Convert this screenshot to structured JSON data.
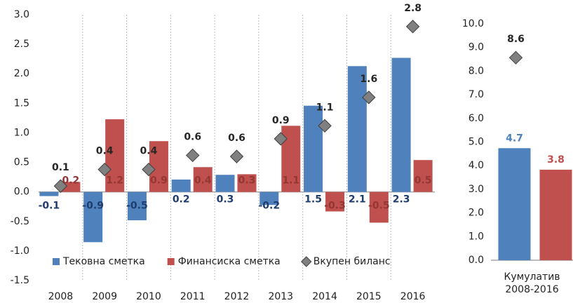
{
  "chart_data": [
    {
      "type": "bar",
      "categories": [
        "2008",
        "2009",
        "2010",
        "2011",
        "2012",
        "2013",
        "2014",
        "2015",
        "2016"
      ],
      "series": [
        {
          "name": "Тековна сметка",
          "type": "bar",
          "color": "#4f81bd",
          "label_color": "#1f3c6e",
          "values": [
            -0.07,
            -0.85,
            -0.48,
            0.21,
            0.29,
            -0.22,
            1.46,
            2.13,
            2.27
          ],
          "value_labels": [
            "-0.1",
            "-0.9",
            "-0.5",
            "0.2",
            "0.3",
            "-0.2",
            "1.5",
            "2.1",
            "2.3"
          ]
        },
        {
          "name": "Финансиска сметка",
          "type": "bar",
          "color": "#c0504d",
          "label_color": "#943634",
          "values": [
            0.17,
            1.23,
            0.86,
            0.42,
            0.3,
            1.12,
            -0.33,
            -0.52,
            0.54
          ],
          "value_labels": [
            "0.2",
            "1.2",
            "0.9",
            "0.4",
            "0.3",
            "1.1",
            "-0.3",
            "-0.5",
            "0.5"
          ]
        },
        {
          "name": "Вкупен биланс",
          "type": "scatter",
          "color": "#808080",
          "label_color": "#262626",
          "values": [
            0.1,
            0.38,
            0.38,
            0.62,
            0.6,
            0.9,
            1.12,
            1.6,
            2.8
          ],
          "value_labels": [
            "0.1",
            "0.4",
            "0.4",
            "0.6",
            "0.6",
            "0.9",
            "1.1",
            "1.6",
            "2.8"
          ]
        }
      ],
      "ylim": [
        -1.5,
        3.0
      ],
      "yticks": [
        {
          "value": -1.5,
          "label": "-1.5"
        },
        {
          "value": -1.0,
          "label": "-1.0"
        },
        -0.5,
        {
          "value": 0,
          "label": "0.0"
        },
        0.5,
        {
          "value": 1.0,
          "label": "1.0"
        },
        1.5,
        {
          "value": 2.0,
          "label": "2.0"
        },
        2.5,
        {
          "value": 3.0,
          "label": "3.0"
        }
      ],
      "grid": true,
      "legend": "lower left"
    },
    {
      "type": "bar",
      "categories": [
        "Кумулатив 2008-2016"
      ],
      "series": [
        {
          "type": "bar",
          "color": "#4f81bd",
          "label_color": "#4f81bd",
          "values": [
            4.74
          ],
          "value_labels": [
            "4.7"
          ]
        },
        {
          "type": "bar",
          "color": "#c0504d",
          "label_color": "#c0504d",
          "values": [
            3.83
          ],
          "value_labels": [
            "3.8"
          ]
        },
        {
          "type": "scatter",
          "color": "#808080",
          "label_color": "#262626",
          "values": [
            8.57
          ],
          "value_labels": [
            "8.6"
          ]
        }
      ],
      "ylim": [
        0,
        10
      ],
      "yticks": [
        {
          "value": 0,
          "label": "0.0"
        },
        {
          "value": 1,
          "label": "1.0"
        },
        {
          "value": 2,
          "label": "2.0"
        },
        {
          "value": 3,
          "label": "3.0"
        },
        {
          "value": 4,
          "label": "4.0"
        },
        {
          "value": 5,
          "label": "5.0"
        },
        {
          "value": 6,
          "label": "6.0"
        },
        {
          "value": 7,
          "label": "7.0"
        },
        {
          "value": 8,
          "label": "8.0"
        },
        {
          "value": 9,
          "label": "9.0"
        },
        {
          "value": 10,
          "label": "10.0"
        }
      ],
      "grid": false
    }
  ]
}
